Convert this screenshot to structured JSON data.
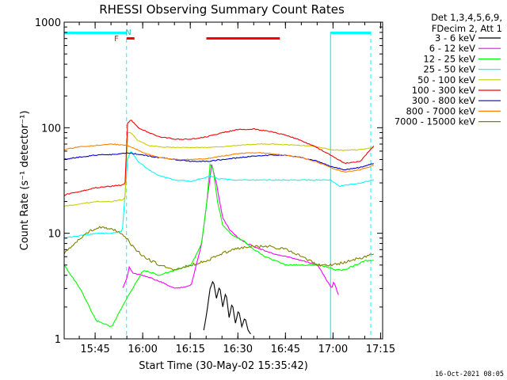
{
  "chart_data": {
    "type": "line",
    "title": "RHESSI Observing Summary Count Rates",
    "xlabel": "Start Time (30-May-02 15:35:42)",
    "ylabel": "Count Rate (s⁻¹ detector⁻¹)",
    "y_scale": "log",
    "ylim": [
      1,
      1000
    ],
    "xlim": [
      "15:35:42",
      "17:16"
    ],
    "x_tick_labels": [
      "15:45",
      "16:00",
      "16:15",
      "16:30",
      "16:45",
      "17:00",
      "17:15"
    ],
    "x_tick_values": [
      585.7,
      1485.7,
      2385.7,
      3285.7,
      4185.7,
      5085.7,
      5985.7
    ],
    "y_tick_labels": [
      "1",
      "10",
      "100",
      "1000"
    ],
    "grid": false,
    "legend_position": "right",
    "legend_header": [
      "Det 1,3,4,5,6,9,",
      "FDecim 2, Att 1"
    ],
    "timestamp": "16-Oct-2021 08:05",
    "annotations": {
      "flag_F": "F",
      "flag_N": "N",
      "night_intervals_s": [
        [
          0,
          1180
        ],
        [
          5040,
          5800
        ]
      ],
      "night_boundaries_s": [
        1180,
        5040,
        5800
      ],
      "flare_flag_intervals_s": [
        [
          1180,
          1330
        ],
        [
          2690,
          4080
        ]
      ]
    },
    "series": [
      {
        "name": "3 - 6 keV",
        "color": "#000000",
        "x": [
          2640,
          2700,
          2760,
          2820,
          2880,
          2940,
          3000,
          3060,
          3120,
          3180,
          3240,
          3300,
          3360,
          3420,
          3480,
          3540
        ],
        "y": [
          1.2,
          1.8,
          3.0,
          3.6,
          2.4,
          3.2,
          2.0,
          2.8,
          1.6,
          2.2,
          1.4,
          1.9,
          1.3,
          1.6,
          1.2,
          1.1
        ]
      },
      {
        "name": "6 - 12 keV",
        "color": "#ff00ff",
        "x": [
          1110,
          1190,
          1230,
          1300,
          1500,
          1800,
          2100,
          2400,
          2600,
          2700,
          2790,
          2880,
          2940,
          3000,
          3120,
          3300,
          3450,
          3600,
          3900,
          4200,
          4500,
          4800,
          5060,
          5100,
          5200
        ],
        "y": [
          3.0,
          3.8,
          4.8,
          4.2,
          4.0,
          3.5,
          3.0,
          3.2,
          8.0,
          20,
          45,
          30,
          20,
          14,
          11,
          9,
          8,
          7.5,
          6.5,
          6.0,
          5.5,
          5.0,
          3.0,
          3.5,
          2.5
        ]
      },
      {
        "name": "12 - 25 keV",
        "color": "#00ff00",
        "x": [
          0,
          300,
          600,
          900,
          1200,
          1500,
          1800,
          2100,
          2400,
          2600,
          2700,
          2760,
          2820,
          2900,
          3000,
          3200,
          3400,
          3600,
          3800,
          4000,
          4200,
          4500,
          4800,
          5000,
          5100,
          5300,
          5500,
          5700,
          5860
        ],
        "y": [
          5.0,
          3.0,
          1.5,
          1.3,
          2.5,
          4.5,
          4.0,
          4.5,
          5.0,
          8.0,
          20,
          45,
          40,
          20,
          12,
          9.5,
          8.5,
          7.0,
          6.0,
          5.5,
          5.0,
          5.0,
          5.0,
          4.8,
          4.5,
          4.5,
          5.0,
          5.5,
          5.5
        ]
      },
      {
        "name": "25 - 50 keV",
        "color": "#00ffff",
        "x": [
          0,
          300,
          600,
          900,
          1100,
          1200,
          1260,
          1400,
          1600,
          1800,
          2100,
          2400,
          2600,
          2760,
          2900,
          3200,
          3600,
          4000,
          4400,
          4800,
          5040,
          5200,
          5600,
          5860
        ],
        "y": [
          9.0,
          9.5,
          10,
          10,
          10.5,
          50,
          60,
          48,
          40,
          35,
          32,
          31,
          33,
          35,
          33,
          32,
          32,
          32,
          32,
          32,
          32,
          28,
          30,
          32
        ]
      },
      {
        "name": "50 - 100 keV",
        "color": "#cccc00",
        "x": [
          0,
          300,
          600,
          900,
          1150,
          1200,
          1260,
          1400,
          1600,
          1800,
          2100,
          2400,
          2700,
          3000,
          3300,
          3600,
          3900,
          4200,
          4500,
          4800,
          5040,
          5300,
          5600,
          5860
        ],
        "y": [
          18,
          19,
          20,
          20,
          21,
          90,
          90,
          75,
          68,
          66,
          65,
          65,
          65,
          66,
          68,
          70,
          70,
          69,
          68,
          66,
          62,
          61,
          62,
          65
        ]
      },
      {
        "name": "100 - 300 keV",
        "color": "#ff0000",
        "x": [
          0,
          300,
          600,
          900,
          1150,
          1200,
          1260,
          1400,
          1600,
          1800,
          2100,
          2400,
          2700,
          3000,
          3300,
          3600,
          3900,
          4200,
          4500,
          4800,
          5040,
          5300,
          5600,
          5860
        ],
        "y": [
          23,
          25,
          27,
          28,
          29,
          110,
          120,
          100,
          90,
          82,
          78,
          78,
          82,
          90,
          96,
          97,
          92,
          85,
          75,
          64,
          55,
          46,
          48,
          68
        ]
      },
      {
        "name": "300 - 800 keV",
        "color": "#0000cc",
        "x": [
          0,
          200,
          600,
          1000,
          1150,
          1200,
          1400,
          1800,
          2100,
          2400,
          2700,
          3000,
          3300,
          3600,
          3900,
          4200,
          4500,
          4800,
          5040,
          5300,
          5600,
          5860
        ],
        "y": [
          50,
          52,
          55,
          56,
          57,
          58,
          56,
          52,
          50,
          48,
          48,
          50,
          52,
          54,
          55,
          55,
          52,
          48,
          43,
          40,
          42,
          46
        ]
      },
      {
        "name": "800 - 7000 keV",
        "color": "#ff8000",
        "x": [
          0,
          300,
          600,
          900,
          1200,
          1260,
          1500,
          1800,
          2100,
          2400,
          2700,
          3000,
          3300,
          3600,
          3900,
          4200,
          4500,
          4800,
          5040,
          5300,
          5600,
          5860
        ],
        "y": [
          62,
          66,
          68,
          70,
          68,
          66,
          58,
          52,
          50,
          50,
          51,
          54,
          57,
          58,
          57,
          55,
          52,
          47,
          42,
          38,
          40,
          44
        ]
      },
      {
        "name": "7000 - 15000 keV",
        "color": "#808000",
        "x": [
          0,
          150,
          300,
          500,
          700,
          900,
          1100,
          1300,
          1500,
          1800,
          2100,
          2400,
          2700,
          3000,
          3300,
          3600,
          3900,
          4200,
          4500,
          4800,
          5100,
          5400,
          5700,
          5860
        ],
        "y": [
          6.5,
          7.5,
          9.0,
          10.5,
          11.5,
          11.0,
          10.0,
          7.5,
          6.0,
          5.0,
          4.5,
          5.0,
          5.5,
          6.5,
          7.2,
          7.5,
          7.5,
          7.0,
          6.0,
          5.0,
          5.0,
          5.5,
          6.0,
          6.5
        ]
      }
    ]
  }
}
